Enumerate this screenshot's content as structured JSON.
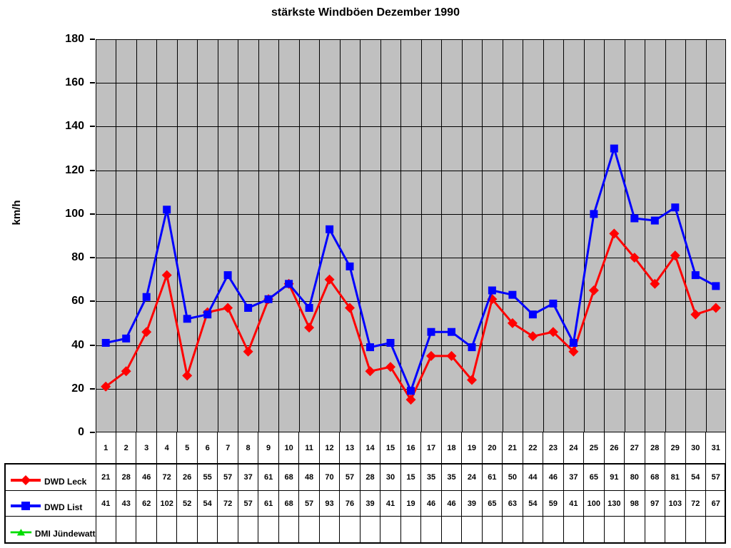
{
  "title": "stärkste Windböen Dezember 1990",
  "y_axis": {
    "label": "km/h",
    "ticks": [
      0,
      20,
      40,
      60,
      80,
      100,
      120,
      140,
      160,
      180
    ]
  },
  "chart_data": {
    "type": "line",
    "title": "stärkste Windböen Dezember 1990",
    "xlabel": "",
    "ylabel": "km/h",
    "ylim": [
      0,
      180
    ],
    "ytick_step": 20,
    "grid": true,
    "plot_bg": "#c0c0c0",
    "grid_color": "#000000",
    "legend_position": "table-bottom-left",
    "categories": [
      "1",
      "2",
      "3",
      "4",
      "5",
      "6",
      "7",
      "8",
      "9",
      "10",
      "11",
      "12",
      "13",
      "14",
      "15",
      "16",
      "17",
      "18",
      "19",
      "20",
      "21",
      "22",
      "23",
      "24",
      "25",
      "26",
      "27",
      "28",
      "29",
      "30",
      "31"
    ],
    "series": [
      {
        "name": "DWD Leck",
        "color": "#ff0000",
        "marker": "diamond",
        "values": [
          21,
          28,
          46,
          72,
          26,
          55,
          57,
          37,
          61,
          68,
          48,
          70,
          57,
          28,
          30,
          15,
          35,
          35,
          24,
          61,
          50,
          44,
          46,
          37,
          65,
          91,
          80,
          68,
          81,
          54,
          57
        ]
      },
      {
        "name": "DWD List",
        "color": "#0000ff",
        "marker": "square",
        "values": [
          41,
          43,
          62,
          102,
          52,
          54,
          72,
          57,
          61,
          68,
          57,
          93,
          76,
          39,
          41,
          19,
          46,
          46,
          39,
          65,
          63,
          54,
          59,
          41,
          100,
          130,
          98,
          97,
          103,
          72,
          67
        ]
      },
      {
        "name": "DMI Jündewatt",
        "color": "#00dd00",
        "marker": "triangle",
        "values": []
      }
    ]
  }
}
